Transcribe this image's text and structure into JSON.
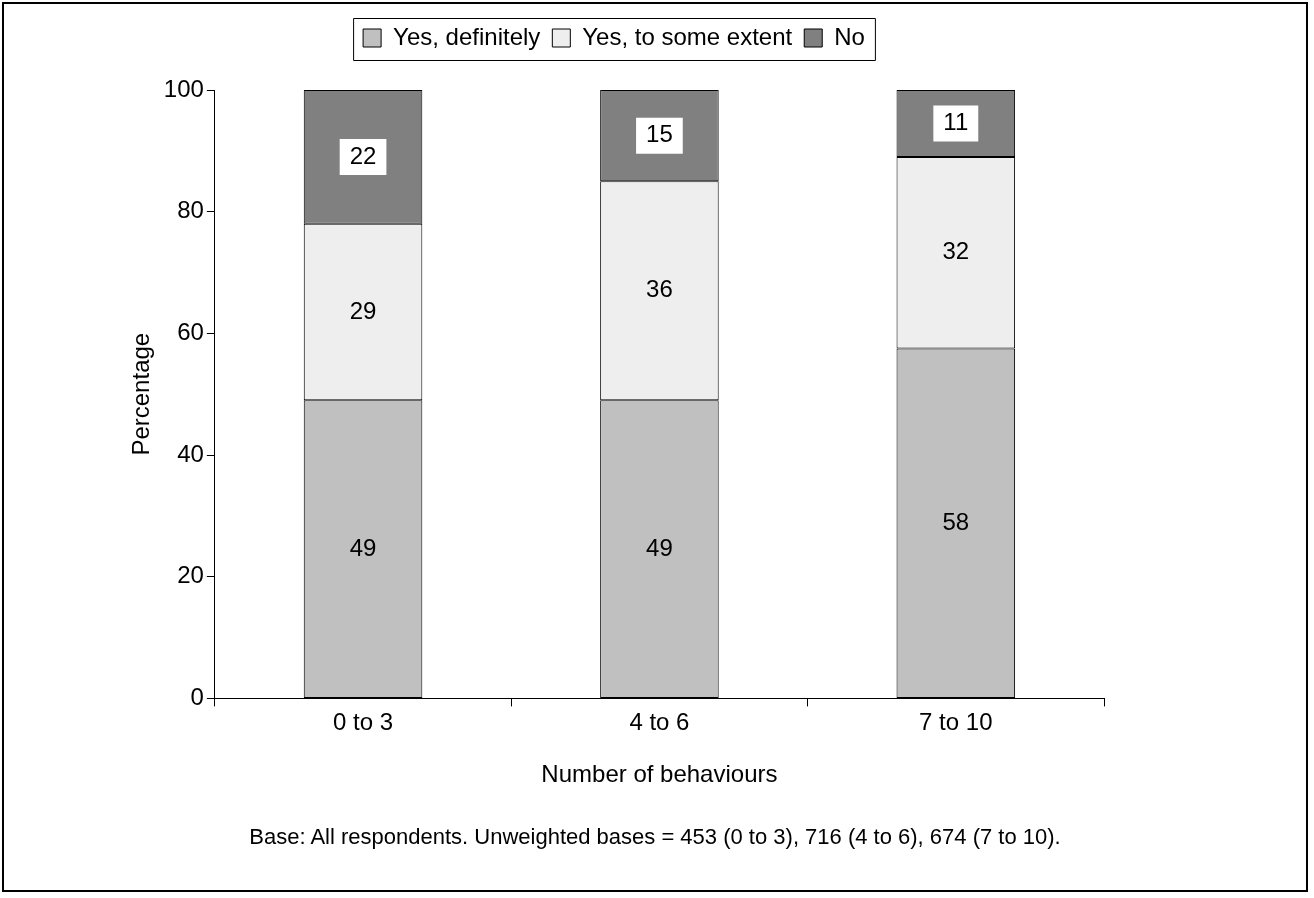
{
  "chart_data": {
    "type": "bar",
    "stacked": true,
    "xlabel": "Number of behaviours",
    "ylabel": "Percentage",
    "categories": [
      "0 to 3",
      "4 to 6",
      "7 to 10"
    ],
    "series": [
      {
        "name": "Yes, definitely",
        "color": "#c0c0c0",
        "values": [
          49,
          49,
          57.5
        ],
        "value_labels": [
          "49",
          "49",
          "58"
        ]
      },
      {
        "name": "Yes, to some extent",
        "color": "#eeeeee",
        "values": [
          29,
          36,
          31.5
        ],
        "value_labels": [
          "29",
          "36",
          "32"
        ]
      },
      {
        "name": "No",
        "color": "#808080",
        "values": [
          22,
          15,
          11
        ],
        "value_labels": [
          "22",
          "15",
          "11"
        ]
      }
    ],
    "ylim": [
      0,
      100
    ],
    "yticks": [
      0,
      20,
      40,
      60,
      80,
      100
    ],
    "grid": false,
    "legend": "top",
    "annotations": [
      "Base: All respondents. Unweighted bases = 453 (0 to 3), 716 (4 to 6), 674 (7 to 10)."
    ]
  }
}
